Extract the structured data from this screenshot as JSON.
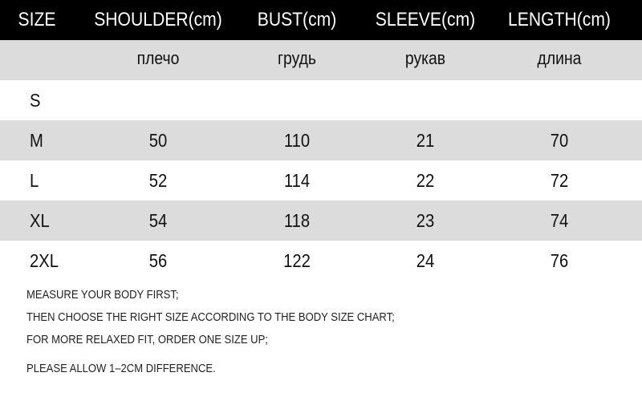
{
  "header": [
    "SIZE",
    "SHOULDER(cm)",
    "BUST(cm)",
    "SLEEVE(cm)",
    "LENGTH(cm)"
  ],
  "subheader": [
    "",
    "плечо",
    "грудь",
    "рукав",
    "длина"
  ],
  "rows": [
    [
      "S",
      "",
      "",
      "",
      ""
    ],
    [
      "M",
      "50",
      "110",
      "21",
      "70"
    ],
    [
      "L",
      "52",
      "114",
      "22",
      "72"
    ],
    [
      "XL",
      "54",
      "118",
      "23",
      "74"
    ],
    [
      "2XL",
      "56",
      "122",
      "24",
      "76"
    ]
  ],
  "notes": [
    "MEASURE YOUR BODY FIRST;",
    "THEN CHOOSE THE RIGHT SIZE ACCORDING TO THE BODY SIZE CHART;",
    "FOR MORE RELAXED FIT, ORDER ONE SIZE UP;",
    "PLEASE ALLOW 1–2CM DIFFERENCE."
  ],
  "colors": {
    "header_bg": "#000000",
    "stripe": "#dcdcdc"
  }
}
